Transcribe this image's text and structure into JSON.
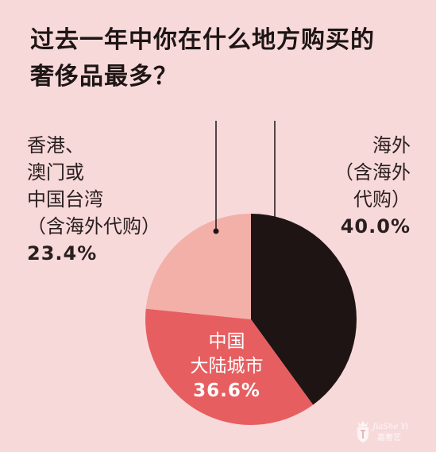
{
  "title": {
    "line1": "过去一年中你在什么地方购买的",
    "line2": "奢侈品最多？"
  },
  "colors": {
    "background": "#f8d9da",
    "overseas": "#1f1414",
    "mainland": "#e75e60",
    "hongkong": "#f2b0a8",
    "leader": "#1f1414"
  },
  "chart_data": {
    "type": "pie",
    "title": "过去一年中你在什么地方购买的奢侈品最多？",
    "slices": [
      {
        "key": "overseas",
        "lines": [
          "海外",
          "（含海外",
          "代购）"
        ],
        "value_label": "40.0%",
        "value": 40.0
      },
      {
        "key": "mainland",
        "lines": [
          "中国",
          "大陆城市"
        ],
        "value_label": "36.6%",
        "value": 36.6
      },
      {
        "key": "hongkong",
        "lines": [
          "香港、",
          "澳门或",
          "中国台湾",
          "（含海外代购）"
        ],
        "value_label": "23.4%",
        "value": 23.4
      }
    ],
    "start_angle_deg": 0,
    "direction": "clockwise",
    "legend": "none"
  },
  "watermark": {
    "icon": "crown-shield-icon",
    "text_en": "JiaShe Yi",
    "text_cn": "嘉奢艺"
  }
}
